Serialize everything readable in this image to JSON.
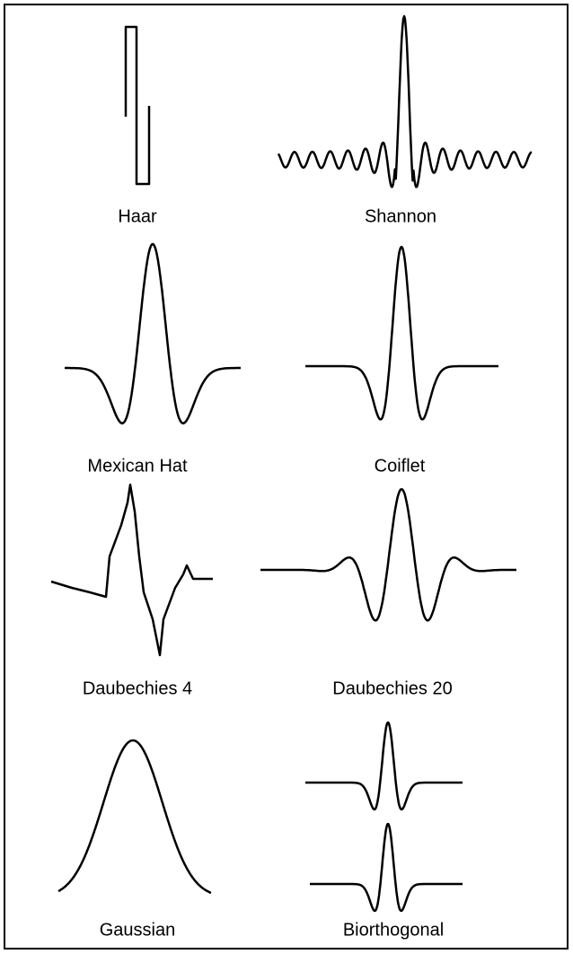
{
  "labels": [
    "Haar",
    "Shannon",
    "Mexican Hat",
    "Coiflet",
    "Daubechies 4",
    "Daubechies 20",
    "Gaussian",
    "Biorthogonal"
  ]
}
